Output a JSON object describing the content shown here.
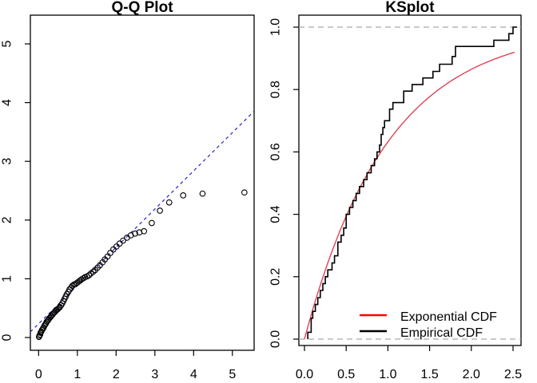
{
  "figure": {
    "background": "#ffffff",
    "text_color": "#000000"
  },
  "chart_data": [
    {
      "type": "scatter",
      "title": "Q-Q Plot",
      "xlabel": "",
      "ylabel": "",
      "xlim": [
        -0.21,
        5.56
      ],
      "ylim": [
        -0.22,
        5.49
      ],
      "xticks": [
        "0",
        "1",
        "2",
        "3",
        "4",
        "5"
      ],
      "yticks": [
        "0",
        "1",
        "2",
        "3",
        "4",
        "5"
      ],
      "grid": "off",
      "point_style": {
        "shape": "open-circle",
        "color": "#000000"
      },
      "reference_line": {
        "style": "dashed",
        "color": "#2222cc",
        "intercept": 0.234,
        "slope": 0.651
      },
      "points": [
        [
          0.01,
          0.01
        ],
        [
          0.02,
          0.03
        ],
        [
          0.04,
          0.05
        ],
        [
          0.05,
          0.08
        ],
        [
          0.07,
          0.1
        ],
        [
          0.09,
          0.13
        ],
        [
          0.11,
          0.15
        ],
        [
          0.13,
          0.17
        ],
        [
          0.15,
          0.2
        ],
        [
          0.17,
          0.22
        ],
        [
          0.19,
          0.24
        ],
        [
          0.21,
          0.27
        ],
        [
          0.24,
          0.29
        ],
        [
          0.26,
          0.31
        ],
        [
          0.28,
          0.33
        ],
        [
          0.31,
          0.35
        ],
        [
          0.33,
          0.37
        ],
        [
          0.36,
          0.39
        ],
        [
          0.38,
          0.41
        ],
        [
          0.41,
          0.43
        ],
        [
          0.44,
          0.45
        ],
        [
          0.46,
          0.47
        ],
        [
          0.49,
          0.48
        ],
        [
          0.52,
          0.5
        ],
        [
          0.55,
          0.52
        ],
        [
          0.58,
          0.55
        ],
        [
          0.61,
          0.58
        ],
        [
          0.64,
          0.62
        ],
        [
          0.67,
          0.66
        ],
        [
          0.7,
          0.7
        ],
        [
          0.73,
          0.74
        ],
        [
          0.77,
          0.78
        ],
        [
          0.8,
          0.82
        ],
        [
          0.84,
          0.85
        ],
        [
          0.87,
          0.88
        ],
        [
          0.91,
          0.9
        ],
        [
          0.95,
          0.91
        ],
        [
          0.99,
          0.93
        ],
        [
          1.03,
          0.95
        ],
        [
          1.07,
          0.97
        ],
        [
          1.11,
          0.99
        ],
        [
          1.16,
          1.01
        ],
        [
          1.2,
          1.03
        ],
        [
          1.25,
          1.04
        ],
        [
          1.3,
          1.06
        ],
        [
          1.35,
          1.09
        ],
        [
          1.41,
          1.12
        ],
        [
          1.46,
          1.15
        ],
        [
          1.52,
          1.19
        ],
        [
          1.58,
          1.23
        ],
        [
          1.65,
          1.28
        ],
        [
          1.71,
          1.33
        ],
        [
          1.78,
          1.38
        ],
        [
          1.85,
          1.44
        ],
        [
          1.93,
          1.5
        ],
        [
          2.01,
          1.55
        ],
        [
          2.09,
          1.6
        ],
        [
          2.18,
          1.65
        ],
        [
          2.28,
          1.7
        ],
        [
          2.38,
          1.74
        ],
        [
          2.49,
          1.77
        ],
        [
          2.6,
          1.79
        ],
        [
          2.72,
          1.81
        ],
        [
          2.92,
          1.95
        ],
        [
          3.13,
          2.16
        ],
        [
          3.37,
          2.3
        ],
        [
          3.73,
          2.42
        ],
        [
          4.23,
          2.45
        ],
        [
          5.31,
          2.47
        ]
      ]
    },
    {
      "type": "line",
      "title": "KSplot",
      "xlabel": "",
      "ylabel": "",
      "xlim": [
        -0.07,
        2.6
      ],
      "ylim": [
        -0.02,
        1.04
      ],
      "xticks": [
        "0.0",
        "0.5",
        "1.0",
        "1.5",
        "2.0",
        "2.5"
      ],
      "yticks": [
        "0.0",
        "0.2",
        "0.4",
        "0.6",
        "0.8",
        "1.0"
      ],
      "grid": "off",
      "guide_lines": {
        "style": "dashed",
        "color": "#a9a9a9",
        "y_values": [
          0.0,
          1.0
        ]
      },
      "series": [
        {
          "name": "Exponential CDF",
          "kind": "function",
          "formula": "F(x) = 1 - exp(-rate * x)",
          "rate": 1.0,
          "x_range": [
            0,
            2.52
          ],
          "color": "#dd4455"
        },
        {
          "name": "Empirical CDF",
          "kind": "step",
          "color": "#000000",
          "end_x": 2.55,
          "steps": [
            [
              0.04,
              0.022
            ],
            [
              0.08,
              0.067
            ],
            [
              0.1,
              0.089
            ],
            [
              0.13,
              0.111
            ],
            [
              0.16,
              0.133
            ],
            [
              0.19,
              0.156
            ],
            [
              0.22,
              0.178
            ],
            [
              0.25,
              0.2
            ],
            [
              0.28,
              0.222
            ],
            [
              0.33,
              0.244
            ],
            [
              0.36,
              0.267
            ],
            [
              0.4,
              0.311
            ],
            [
              0.44,
              0.333
            ],
            [
              0.47,
              0.356
            ],
            [
              0.5,
              0.4
            ],
            [
              0.54,
              0.422
            ],
            [
              0.58,
              0.444
            ],
            [
              0.62,
              0.467
            ],
            [
              0.66,
              0.489
            ],
            [
              0.71,
              0.511
            ],
            [
              0.75,
              0.533
            ],
            [
              0.8,
              0.556
            ],
            [
              0.84,
              0.578
            ],
            [
              0.87,
              0.6
            ],
            [
              0.9,
              0.622
            ],
            [
              0.92,
              0.656
            ],
            [
              0.94,
              0.678
            ],
            [
              0.96,
              0.7
            ],
            [
              1.02,
              0.737
            ],
            [
              1.06,
              0.758
            ],
            [
              1.19,
              0.795
            ],
            [
              1.29,
              0.816
            ],
            [
              1.42,
              0.837
            ],
            [
              1.54,
              0.858
            ],
            [
              1.62,
              0.881
            ],
            [
              1.77,
              0.906
            ],
            [
              1.81,
              0.938
            ],
            [
              2.27,
              0.958
            ],
            [
              2.45,
              0.979
            ],
            [
              2.5,
              1.0
            ]
          ]
        }
      ],
      "legend": {
        "position": "bottom-right-inside",
        "items": [
          {
            "label": "Exponential CDF",
            "color": "#ff0000"
          },
          {
            "label": "Empirical CDF",
            "color": "#000000"
          }
        ]
      }
    }
  ]
}
